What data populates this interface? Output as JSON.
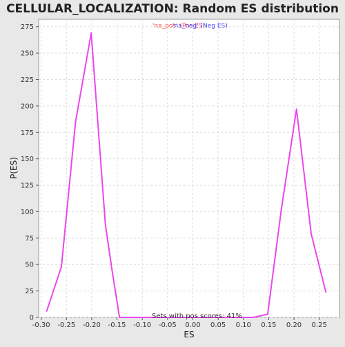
{
  "chart_data": {
    "type": "line",
    "title": "CELLULAR_LOCALIZATION: Random ES distribution",
    "xlabel": "ES",
    "ylabel": "P(ES)",
    "xlim": [
      -0.305,
      0.29
    ],
    "ylim": [
      0,
      282
    ],
    "xticks": [
      -0.3,
      -0.25,
      -0.2,
      -0.15,
      -0.1,
      -0.05,
      0.0,
      0.05,
      0.1,
      0.15,
      0.2,
      0.25
    ],
    "xtick_labels": [
      "-0.30",
      "-0.25",
      "-0.20",
      "-0.15",
      "-0.10",
      "-0.05",
      "0.00",
      "0.05",
      "0.10",
      "0.15",
      "0.20",
      "0.25"
    ],
    "yticks": [
      0,
      25,
      50,
      75,
      100,
      125,
      150,
      175,
      200,
      225,
      250,
      275
    ],
    "ytick_labels": [
      "0",
      "25",
      "50",
      "75",
      "100",
      "125",
      "150",
      "175",
      "200",
      "225",
      "250",
      "275"
    ],
    "grid": true,
    "legend_entries": [
      {
        "label": "'na_pos' (Pos ES)",
        "color": "#ff4a4a"
      },
      {
        "label": "'na_neg' (Neg ES)",
        "color": "#4a4aff"
      }
    ],
    "annotation": "Sets with pos scores: 41%",
    "series": [
      {
        "color": "#ee44ee",
        "x": [
          -0.289,
          -0.26,
          -0.232,
          -0.201,
          -0.173,
          -0.16,
          -0.145,
          -0.13,
          -0.116,
          -0.1,
          -0.08,
          -0.06,
          -0.04,
          -0.02,
          0.0,
          0.02,
          0.04,
          0.06,
          0.08,
          0.1,
          0.12,
          0.148,
          0.175,
          0.205,
          0.234,
          0.263
        ],
        "y": [
          6,
          48,
          185,
          269,
          88,
          45,
          0,
          0,
          0,
          0,
          0,
          0,
          0,
          0,
          0,
          0,
          0,
          0,
          0,
          0,
          0,
          3,
          102,
          197,
          79,
          24
        ]
      }
    ]
  }
}
